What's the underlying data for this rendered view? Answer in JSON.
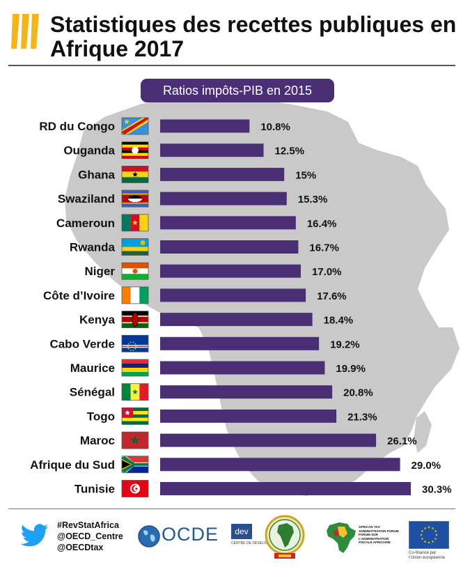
{
  "header": {
    "title": "Statistiques des recettes publiques en Afrique 2017",
    "subtitle": "Ratios impôts-PIB en 2015"
  },
  "chart_data": {
    "type": "bar",
    "orientation": "horizontal",
    "title": "Statistiques des recettes publiques en Afrique 2017",
    "subtitle": "Ratios impôts-PIB en 2015",
    "categories": [
      "RD du Congo",
      "Ouganda",
      "Ghana",
      "Swaziland",
      "Cameroun",
      "Rwanda",
      "Niger",
      "Côte d’Ivoire",
      "Kenya",
      "Cabo Verde",
      "Maurice",
      "Sénégal",
      "Togo",
      "Maroc",
      "Afrique du Sud",
      "Tunisie"
    ],
    "values": [
      10.8,
      12.5,
      15,
      15.3,
      16.4,
      16.7,
      17.0,
      17.6,
      18.4,
      19.2,
      19.9,
      20.8,
      21.3,
      26.1,
      29.0,
      30.3
    ],
    "value_labels": [
      "10.8%",
      "12.5%",
      "15%",
      "15.3%",
      "16.4%",
      "16.7%",
      "17.0%",
      "17.6%",
      "18.4%",
      "19.2%",
      "19.9%",
      "20.8%",
      "21.3%",
      "26.1%",
      "29.0%",
      "30.3%"
    ],
    "flags": [
      "flag-drc-icon",
      "flag-uganda-icon",
      "flag-ghana-icon",
      "flag-swaziland-icon",
      "flag-cameroon-icon",
      "flag-rwanda-icon",
      "flag-niger-icon",
      "flag-cote-divoire-icon",
      "flag-kenya-icon",
      "flag-cabo-verde-icon",
      "flag-mauritius-icon",
      "flag-senegal-icon",
      "flag-togo-icon",
      "flag-morocco-icon",
      "flag-south-africa-icon",
      "flag-tunisia-icon"
    ],
    "xlim": [
      0,
      30.3
    ],
    "grid": false,
    "legend": "none",
    "bar_color": "#4a2f74",
    "background_shape": "africa-map-icon",
    "map_color": "#c9c9c9"
  },
  "footer": {
    "handles": [
      "#RevStatAfrica",
      "@OECD_Centre",
      "@OECDtax"
    ],
    "ocde": "OCDE",
    "dev": "dev",
    "dev_sub": "CENTRE DE DÉVELOPPEMENT",
    "ataf_text": [
      "AFRICAN TAX",
      "ADMINISTRATION FORUM",
      "FORUM SUR",
      "L’ADMINISTRATION",
      "FISCALE AFRICAINE"
    ],
    "eu_text": [
      "Co-financé par",
      "l’Union européenne"
    ]
  },
  "colors": {
    "accent": "#4a2f74",
    "oecd_yellow": "#f2b51c",
    "twitter": "#1da1f2",
    "eu_blue": "#1f4fa0",
    "eu_star": "#ffd400"
  }
}
